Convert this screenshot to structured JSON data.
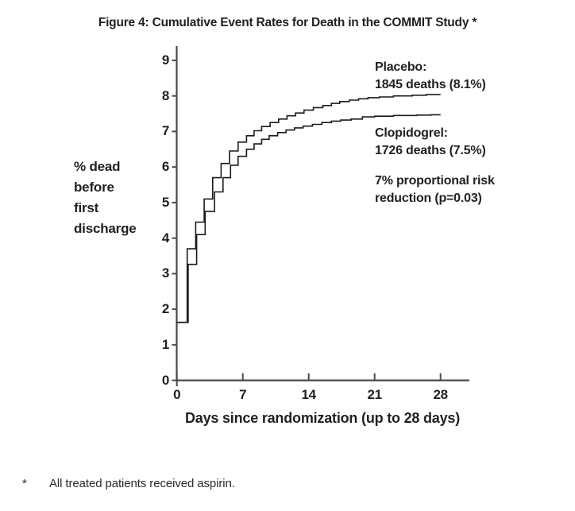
{
  "title": "Figure 4: Cumulative Event Rates for Death in the COMMIT Study *",
  "y_axis": {
    "label": "% dead\nbefore\nfirst\ndischarge",
    "ticks": [
      0,
      1,
      2,
      3,
      4,
      5,
      6,
      7,
      8,
      9
    ]
  },
  "x_axis": {
    "label": "Days since randomization (up to 28 days)",
    "ticks": [
      0,
      7,
      14,
      21,
      28
    ]
  },
  "annotations": {
    "placebo": "Placebo:\n1845 deaths (8.1%)",
    "clopidogrel": "Clopidogrel:\n1726 deaths (7.5%)",
    "risk": "7% proportional risk\nreduction (p=0.03)"
  },
  "footnote": {
    "marker": "*",
    "text": "All treated patients received aspirin."
  },
  "chart_data": {
    "type": "line",
    "subtype": "step-after",
    "title": "Figure 4: Cumulative Event Rates for Death in the COMMIT Study *",
    "xlabel": "Days since randomization (up to 28 days)",
    "ylabel": "% dead before first discharge",
    "xlim": [
      0,
      31
    ],
    "ylim": [
      0,
      9.3
    ],
    "x_ticks": [
      0,
      7,
      14,
      21,
      28
    ],
    "y_ticks": [
      0,
      1,
      2,
      3,
      4,
      5,
      6,
      7,
      8,
      9
    ],
    "grid": false,
    "legend_position": "annotated-right",
    "line_color": "#1b1b1b",
    "axis_color": "#4a4a4a",
    "x_end": 28,
    "series": [
      {
        "name": "Placebo",
        "label": "Placebo: 1845 deaths (8.1%)",
        "steps": [
          [
            0,
            1.63
          ],
          [
            1.1,
            3.7
          ],
          [
            2.0,
            4.45
          ],
          [
            2.9,
            5.1
          ],
          [
            3.8,
            5.7
          ],
          [
            4.7,
            6.1
          ],
          [
            5.6,
            6.45
          ],
          [
            6.5,
            6.7
          ],
          [
            7.4,
            6.88
          ],
          [
            8.2,
            7.02
          ],
          [
            9.0,
            7.14
          ],
          [
            9.9,
            7.25
          ],
          [
            10.8,
            7.35
          ],
          [
            11.7,
            7.44
          ],
          [
            12.6,
            7.52
          ],
          [
            13.5,
            7.6
          ],
          [
            14.5,
            7.67
          ],
          [
            15.5,
            7.73
          ],
          [
            16.4,
            7.79
          ],
          [
            17.3,
            7.84
          ],
          [
            18.3,
            7.88
          ],
          [
            19.3,
            7.92
          ],
          [
            20.3,
            7.95
          ],
          [
            21.5,
            7.97
          ],
          [
            23.0,
            8.0
          ],
          [
            25.0,
            8.02
          ],
          [
            26.5,
            8.04
          ]
        ]
      },
      {
        "name": "Clopidogrel",
        "label": "Clopidogrel: 1726 deaths (7.5%)",
        "steps": [
          [
            0,
            1.63
          ],
          [
            1.2,
            3.26
          ],
          [
            2.1,
            4.1
          ],
          [
            3.0,
            4.75
          ],
          [
            4.0,
            5.3
          ],
          [
            4.9,
            5.7
          ],
          [
            5.7,
            6.05
          ],
          [
            6.5,
            6.3
          ],
          [
            7.4,
            6.5
          ],
          [
            8.2,
            6.65
          ],
          [
            9.0,
            6.78
          ],
          [
            9.8,
            6.88
          ],
          [
            10.7,
            6.97
          ],
          [
            11.6,
            7.04
          ],
          [
            12.5,
            7.1
          ],
          [
            13.4,
            7.15
          ],
          [
            14.4,
            7.2
          ],
          [
            15.4,
            7.25
          ],
          [
            16.4,
            7.29
          ],
          [
            17.4,
            7.32
          ],
          [
            18.5,
            7.35
          ],
          [
            19.7,
            7.41
          ],
          [
            21.0,
            7.43
          ],
          [
            23.0,
            7.45
          ],
          [
            25.5,
            7.46
          ],
          [
            27.0,
            7.47
          ]
        ]
      }
    ]
  }
}
